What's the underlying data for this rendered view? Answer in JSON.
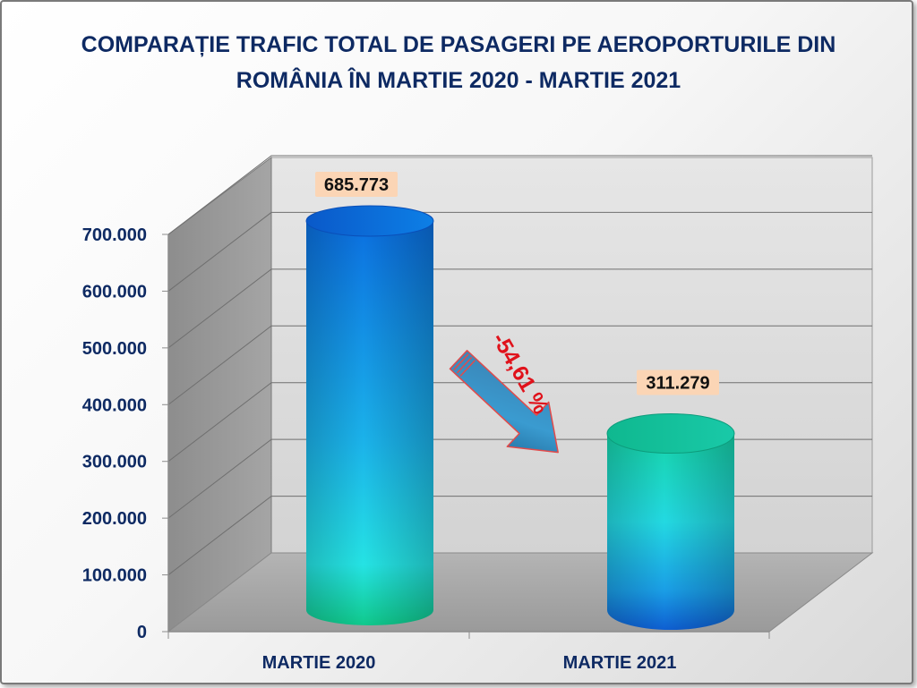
{
  "chart_data": {
    "type": "bar",
    "title_lines": [
      "COMPARAȚIE TRAFIC TOTAL DE PASAGERI PE AEROPORTURILE DIN",
      "ROMÂNIA ÎN MARTIE 2020 - MARTIE 2021"
    ],
    "categories": [
      "MARTIE 2020",
      "MARTIE 2021"
    ],
    "values": [
      685773,
      311279
    ],
    "data_labels": [
      "685.773",
      "311.279"
    ],
    "y_ticks": [
      "0",
      "100.000",
      "200.000",
      "300.000",
      "400.000",
      "500.000",
      "600.000",
      "700.000"
    ],
    "ylim": [
      0,
      700000
    ],
    "grid": true,
    "change_label": "-54,61 %",
    "colors": {
      "title": "#0e2a63",
      "bar1": "#1c7fe0",
      "bar2": "#19c9b0",
      "change": "#e0121b",
      "label_bg": "#fbd5b5"
    }
  }
}
